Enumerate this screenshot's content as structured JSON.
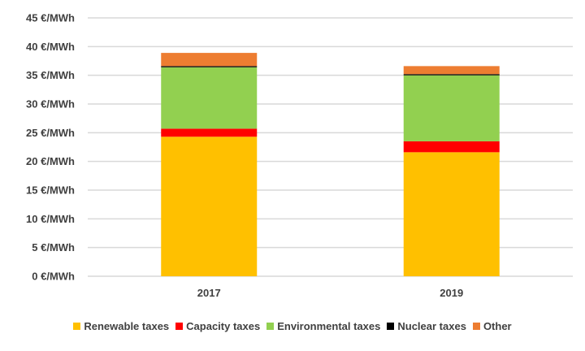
{
  "chart_data": {
    "type": "bar",
    "stacked": true,
    "title": "",
    "xlabel": "",
    "ylabel": "",
    "categories": [
      "2017",
      "2019"
    ],
    "ylim": [
      0,
      45
    ],
    "ytick_values": [
      0,
      5,
      10,
      15,
      20,
      25,
      30,
      35,
      40,
      45
    ],
    "ytick_labels": [
      "0 €/MWh",
      "5 €/MWh",
      "10 €/MWh",
      "15 €/MWh",
      "20 €/MWh",
      "25 €/MWh",
      "30 €/MWh",
      "35 €/MWh",
      "40 €/MWh",
      "45 €/MWh"
    ],
    "grid": true,
    "legend_position": "bottom",
    "series": [
      {
        "name": "Renewable taxes",
        "color": "#FFC000",
        "values": [
          24.3,
          21.6
        ]
      },
      {
        "name": "Capacity taxes",
        "color": "#FF0000",
        "values": [
          1.4,
          1.9
        ]
      },
      {
        "name": "Environmental taxes",
        "color": "#92D050",
        "values": [
          10.7,
          11.5
        ]
      },
      {
        "name": "Nuclear taxes",
        "color": "#000000",
        "values": [
          0.2,
          0.2
        ]
      },
      {
        "name": "Other",
        "color": "#ED7D31",
        "values": [
          2.3,
          1.4
        ]
      }
    ]
  }
}
